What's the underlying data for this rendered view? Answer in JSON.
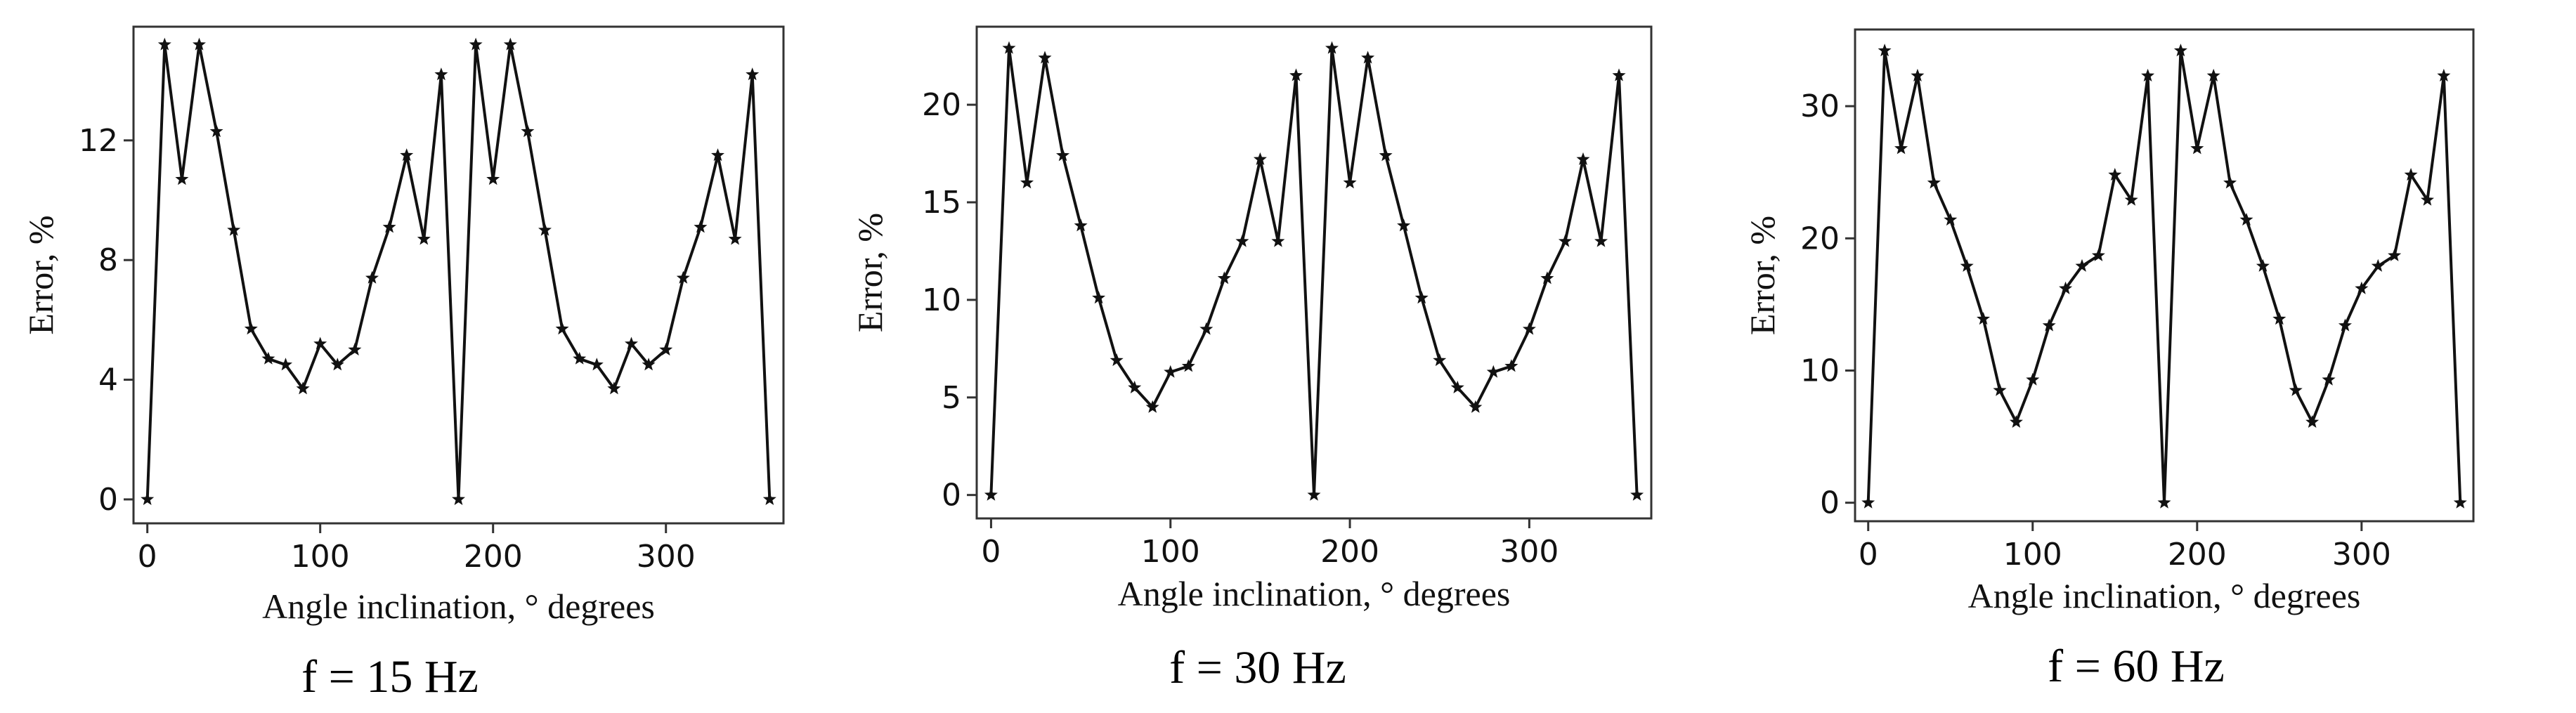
{
  "figure_captions": [
    "f = 15 Hz",
    "f = 30 Hz",
    "f = 60 Hz"
  ],
  "chart_data": [
    {
      "type": "line",
      "title": "f = 15 Hz",
      "xlabel": "Angle inclination, ° degrees",
      "ylabel": "Error, %",
      "xlim": [
        -8,
        368
      ],
      "ylim": [
        -0.8,
        15.8
      ],
      "xticks": [
        0,
        100,
        200,
        300
      ],
      "yticks": [
        0,
        4,
        8,
        12
      ],
      "x": [
        0,
        10,
        20,
        30,
        40,
        50,
        60,
        70,
        80,
        90,
        100,
        110,
        120,
        130,
        140,
        150,
        160,
        170,
        180,
        190,
        200,
        210,
        220,
        230,
        240,
        250,
        260,
        270,
        280,
        290,
        300,
        310,
        320,
        330,
        340,
        350,
        360
      ],
      "series": [
        {
          "name": "Error",
          "values": [
            0,
            15.2,
            10.7,
            15.2,
            12.3,
            9.0,
            5.7,
            4.7,
            4.5,
            3.7,
            5.2,
            4.5,
            5.0,
            7.4,
            9.1,
            11.5,
            8.7,
            14.2,
            0,
            15.2,
            10.7,
            15.2,
            12.3,
            9.0,
            5.7,
            4.7,
            4.5,
            3.7,
            5.2,
            4.5,
            5.0,
            7.4,
            9.1,
            11.5,
            8.7,
            14.2,
            0
          ]
        }
      ]
    },
    {
      "type": "line",
      "title": "f = 30 Hz",
      "xlabel": "Angle inclination, ° degrees",
      "ylabel": "Error, %",
      "xlim": [
        -8,
        368
      ],
      "ylim": [
        -1.2,
        24.0
      ],
      "xticks": [
        0,
        100,
        200,
        300
      ],
      "yticks": [
        0,
        5,
        10,
        15,
        20
      ],
      "x": [
        0,
        10,
        20,
        30,
        40,
        50,
        60,
        70,
        80,
        90,
        100,
        110,
        120,
        130,
        140,
        150,
        160,
        170,
        180,
        190,
        200,
        210,
        220,
        230,
        240,
        250,
        260,
        270,
        280,
        290,
        300,
        310,
        320,
        330,
        340,
        350,
        360
      ],
      "series": [
        {
          "name": "Error",
          "values": [
            0,
            22.9,
            16.0,
            22.4,
            17.4,
            13.8,
            10.1,
            6.9,
            5.5,
            4.5,
            6.3,
            6.6,
            8.5,
            11.1,
            13.0,
            17.2,
            13.0,
            21.5,
            0,
            22.9,
            16.0,
            22.4,
            17.4,
            13.8,
            10.1,
            6.9,
            5.5,
            4.5,
            6.3,
            6.6,
            8.5,
            11.1,
            13.0,
            17.2,
            13.0,
            21.5,
            0
          ]
        }
      ]
    },
    {
      "type": "line",
      "title": "f = 60 Hz",
      "xlabel": "Angle inclination, ° degrees",
      "ylabel": "Error, %",
      "xlim": [
        -8,
        368
      ],
      "ylim": [
        -1.4,
        35.8
      ],
      "xticks": [
        0,
        100,
        200,
        300
      ],
      "yticks": [
        0,
        10,
        20,
        30
      ],
      "x": [
        0,
        10,
        20,
        30,
        40,
        50,
        60,
        70,
        80,
        90,
        100,
        110,
        120,
        130,
        140,
        150,
        160,
        170,
        180,
        190,
        200,
        210,
        220,
        230,
        240,
        250,
        260,
        270,
        280,
        290,
        300,
        310,
        320,
        330,
        340,
        350,
        360
      ],
      "series": [
        {
          "name": "Error",
          "values": [
            0,
            34.2,
            26.8,
            32.3,
            24.2,
            21.4,
            17.9,
            13.9,
            8.5,
            6.1,
            9.3,
            13.4,
            16.2,
            17.9,
            18.7,
            24.8,
            22.9,
            32.3,
            0,
            34.2,
            26.8,
            32.3,
            24.2,
            21.4,
            17.9,
            13.9,
            8.5,
            6.1,
            9.3,
            13.4,
            16.2,
            17.9,
            18.7,
            24.8,
            22.9,
            32.3,
            0
          ]
        }
      ]
    }
  ]
}
